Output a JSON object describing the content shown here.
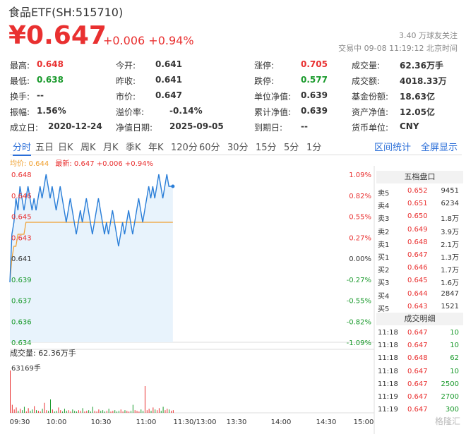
{
  "header": {
    "title": "食品ETF(SH:515710)",
    "price": "¥0.647",
    "change": "+0.006 +0.94%",
    "followers": "3.40 万球友关注",
    "status": "交易中 09-08 11:19:12 北京时间"
  },
  "stats": [
    {
      "label": "最高:",
      "value": "0.648",
      "color": "red"
    },
    {
      "label": "今开:",
      "value": "0.641",
      "color": ""
    },
    {
      "label": "涨停:",
      "value": "0.705",
      "color": "red"
    },
    {
      "label": "成交量:",
      "value": "62.36万手",
      "color": ""
    },
    {
      "label": "最低:",
      "value": "0.638",
      "color": "green"
    },
    {
      "label": "昨收:",
      "value": "0.641",
      "color": ""
    },
    {
      "label": "跌停:",
      "value": "0.577",
      "color": "green"
    },
    {
      "label": "成交额:",
      "value": "4018.33万",
      "color": ""
    },
    {
      "label": "换手:",
      "value": "--",
      "color": ""
    },
    {
      "label": "市价:",
      "value": "0.647",
      "color": ""
    },
    {
      "label": "单位净值:",
      "value": "0.639",
      "color": ""
    },
    {
      "label": "基金份额:",
      "value": "18.63亿",
      "color": ""
    },
    {
      "label": "振幅:",
      "value": "1.56%",
      "color": ""
    },
    {
      "label": "溢价率:",
      "value": "-0.14%",
      "color": ""
    },
    {
      "label": "累计净值:",
      "value": "0.639",
      "color": ""
    },
    {
      "label": "资产净值:",
      "value": "12.05亿",
      "color": ""
    },
    {
      "label": "成立日:",
      "value": "2020-12-24",
      "color": ""
    },
    {
      "label": "净值日期:",
      "value": "2025-09-05",
      "color": ""
    },
    {
      "label": "到期日:",
      "value": "--",
      "color": ""
    },
    {
      "label": "货币单位:",
      "value": "CNY",
      "color": ""
    }
  ],
  "tabs": [
    "分时",
    "五日",
    "日K",
    "周K",
    "月K",
    "季K",
    "年K",
    "120分",
    "60分",
    "30分",
    "15分",
    "5分",
    "1分"
  ],
  "links": [
    "区间统计",
    "全屏显示"
  ],
  "legend": {
    "avg": "均价: 0.644",
    "latest": "最新: 0.647 +0.006 +0.94%"
  },
  "chart_data": {
    "type": "line",
    "price_ticks": [
      "0.648",
      "0.646",
      "0.645",
      "0.643",
      "0.641",
      "0.639",
      "0.637",
      "0.636",
      "0.634"
    ],
    "pct_ticks": [
      "1.09%",
      "0.82%",
      "0.55%",
      "0.27%",
      "0.00%",
      "-0.27%",
      "-0.55%",
      "-0.82%",
      "-1.09%"
    ],
    "time_ticks": [
      "09:30",
      "10:00",
      "10:30",
      "11:00",
      "11:30/13:00",
      "13:30",
      "14:00",
      "14:30",
      "15:00"
    ],
    "price_range": [
      0.634,
      0.648
    ],
    "prices": [
      0.639,
      0.643,
      0.644,
      0.646,
      0.645,
      0.647,
      0.646,
      0.645,
      0.646,
      0.647,
      0.646,
      0.645,
      0.646,
      0.645,
      0.646,
      0.647,
      0.646,
      0.647,
      0.648,
      0.647,
      0.646,
      0.647,
      0.646,
      0.645,
      0.646,
      0.647,
      0.646,
      0.645,
      0.644,
      0.645,
      0.646,
      0.645,
      0.644,
      0.643,
      0.644,
      0.645,
      0.644,
      0.645,
      0.646,
      0.645,
      0.644,
      0.643,
      0.644,
      0.645,
      0.646,
      0.645,
      0.644,
      0.643,
      0.644,
      0.643,
      0.644,
      0.645,
      0.644,
      0.643,
      0.642,
      0.643,
      0.644,
      0.643,
      0.644,
      0.645,
      0.644,
      0.643,
      0.644,
      0.645,
      0.646,
      0.645,
      0.644,
      0.645,
      0.646,
      0.647,
      0.646,
      0.647,
      0.646,
      0.647,
      0.648,
      0.647,
      0.646,
      0.647,
      0.648,
      0.647,
      0.647,
      0.647
    ],
    "avg": [
      0.639,
      0.641,
      0.642,
      0.642,
      0.643,
      0.643,
      0.643,
      0.643,
      0.644,
      0.644,
      0.644,
      0.644,
      0.644,
      0.644,
      0.644,
      0.644,
      0.644,
      0.644,
      0.644,
      0.644,
      0.644,
      0.644,
      0.644,
      0.644,
      0.644,
      0.644,
      0.644,
      0.644,
      0.644,
      0.644,
      0.644,
      0.644,
      0.644,
      0.644,
      0.644,
      0.644,
      0.644,
      0.644,
      0.644,
      0.644,
      0.644,
      0.644,
      0.644,
      0.644,
      0.644,
      0.644,
      0.644,
      0.644,
      0.644,
      0.644,
      0.644,
      0.644,
      0.644,
      0.644,
      0.644,
      0.644,
      0.644,
      0.644,
      0.644,
      0.644,
      0.644,
      0.644,
      0.644,
      0.644,
      0.644,
      0.644,
      0.644,
      0.644,
      0.644,
      0.644,
      0.644,
      0.644,
      0.644,
      0.644,
      0.644,
      0.644,
      0.644,
      0.644,
      0.644,
      0.644,
      0.644,
      0.644
    ],
    "volume_label": "成交量: 62.36万手",
    "volume_max": "63169手",
    "volumes": [
      63169,
      12000,
      5000,
      8000,
      3000,
      6000,
      4000,
      9000,
      2000,
      7000,
      3000,
      5000,
      10000,
      4000,
      3000,
      2000,
      6000,
      15000,
      4000,
      3000,
      20000,
      5000,
      2000,
      3000,
      8000,
      4000,
      2000,
      6000,
      3000,
      4000,
      2000,
      5000,
      3000,
      2000,
      4000,
      3000,
      7000,
      2000,
      3000,
      4000,
      2000,
      9000,
      3000,
      2000,
      5000,
      3000,
      4000,
      2000,
      3000,
      6000,
      2000,
      3000,
      4000,
      2000,
      3000,
      5000,
      2000,
      4000,
      3000,
      2000,
      3000,
      12000,
      4000,
      3000,
      2000,
      5000,
      3000,
      40000,
      4000,
      6000,
      3000,
      8000,
      5000,
      4000,
      7000,
      3000,
      9000,
      4000,
      6000,
      5000,
      3000,
      4000
    ]
  },
  "order_book": {
    "title": "五档盘口",
    "asks": [
      {
        "label": "卖5",
        "price": "0.652",
        "vol": "9451"
      },
      {
        "label": "卖4",
        "price": "0.651",
        "vol": "6234"
      },
      {
        "label": "卖3",
        "price": "0.650",
        "vol": "1.8万"
      },
      {
        "label": "卖2",
        "price": "0.649",
        "vol": "3.9万"
      },
      {
        "label": "卖1",
        "price": "0.648",
        "vol": "2.1万"
      }
    ],
    "bids": [
      {
        "label": "买1",
        "price": "0.647",
        "vol": "1.3万"
      },
      {
        "label": "买2",
        "price": "0.646",
        "vol": "1.7万"
      },
      {
        "label": "买3",
        "price": "0.645",
        "vol": "1.6万"
      },
      {
        "label": "买4",
        "price": "0.644",
        "vol": "2847"
      },
      {
        "label": "买5",
        "price": "0.643",
        "vol": "1521"
      }
    ]
  },
  "trades": {
    "title": "成交明细",
    "rows": [
      {
        "time": "11:18",
        "price": "0.647",
        "vol": "10"
      },
      {
        "time": "11:18",
        "price": "0.647",
        "vol": "10"
      },
      {
        "time": "11:18",
        "price": "0.648",
        "vol": "62"
      },
      {
        "time": "11:18",
        "price": "0.647",
        "vol": "10"
      },
      {
        "time": "11:18",
        "price": "0.647",
        "vol": "2500"
      },
      {
        "time": "11:19",
        "price": "0.647",
        "vol": "2700"
      },
      {
        "time": "11:19",
        "price": "0.647",
        "vol": "300"
      }
    ]
  },
  "colors": {
    "up": "#e93030",
    "down": "#1a9a2c",
    "line": "#2a7ed8",
    "avg": "#f0a030",
    "fill": "#e8f3fc"
  },
  "watermark": "格隆汇"
}
